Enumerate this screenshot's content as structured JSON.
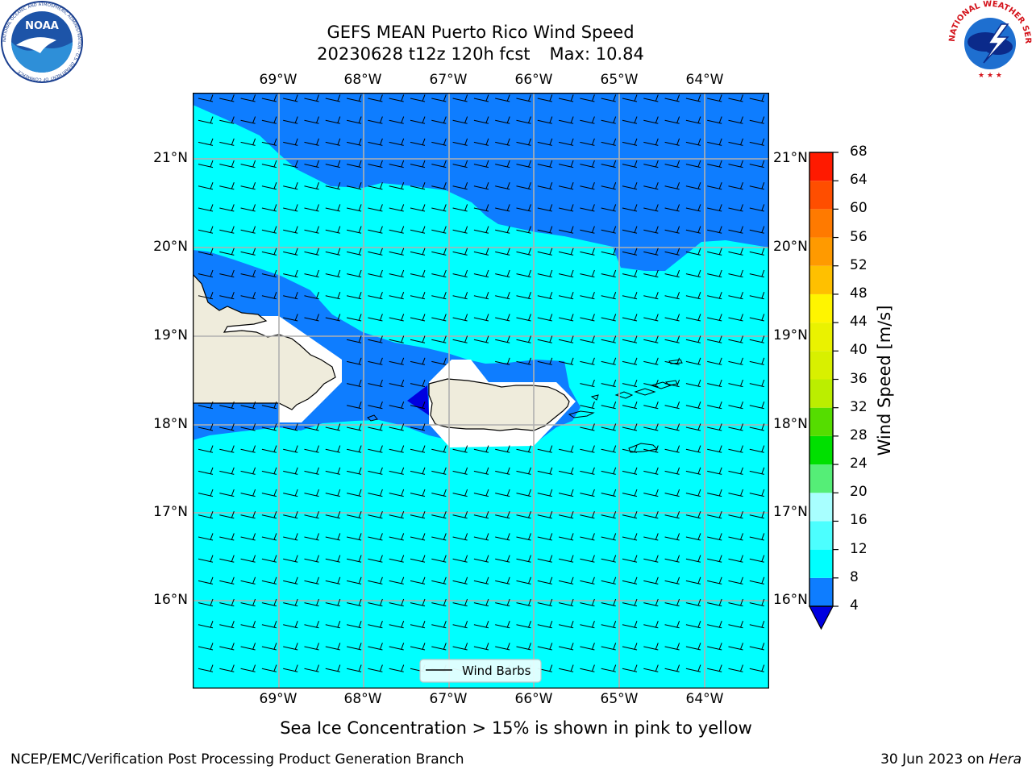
{
  "title": {
    "line1": "GEFS MEAN Puerto Rico Wind Speed",
    "line2_run": "20230628 t12z 120h fcst",
    "line2_max": "Max: 10.84"
  },
  "map": {
    "lon_labels": [
      "69°W",
      "68°W",
      "67°W",
      "66°W",
      "65°W",
      "64°W"
    ],
    "lat_labels": [
      "21°N",
      "20°N",
      "19°N",
      "18°N",
      "17°N",
      "16°N"
    ],
    "legend_label": "Wind Barbs",
    "colors": {
      "band_4_8": "#0e7dff",
      "band_8_12": "#00ffff",
      "below_4": "#0000e0",
      "land": "#efecdc",
      "grid": "#b0b0b0"
    }
  },
  "colorbar": {
    "title": "Wind Speed [m/s]",
    "tick_labels": [
      "68",
      "64",
      "60",
      "56",
      "52",
      "48",
      "44",
      "40",
      "36",
      "32",
      "28",
      "24",
      "20",
      "16",
      "12",
      "8",
      "4"
    ],
    "bands": [
      {
        "from": 4,
        "to": 8,
        "color": "#0e7dff"
      },
      {
        "from": 8,
        "to": 12,
        "color": "#00ffff"
      },
      {
        "from": 12,
        "to": 16,
        "color": "#4cffff"
      },
      {
        "from": 16,
        "to": 20,
        "color": "#a8ffff"
      },
      {
        "from": 20,
        "to": 24,
        "color": "#55ee77"
      },
      {
        "from": 24,
        "to": 28,
        "color": "#00e000"
      },
      {
        "from": 28,
        "to": 32,
        "color": "#55dd00"
      },
      {
        "from": 32,
        "to": 36,
        "color": "#bbee00"
      },
      {
        "from": 36,
        "to": 40,
        "color": "#d8f000"
      },
      {
        "from": 40,
        "to": 44,
        "color": "#eaf200"
      },
      {
        "from": 44,
        "to": 48,
        "color": "#fff500"
      },
      {
        "from": 48,
        "to": 52,
        "color": "#ffc000"
      },
      {
        "from": 52,
        "to": 56,
        "color": "#ff9a00"
      },
      {
        "from": 56,
        "to": 60,
        "color": "#ff7a00"
      },
      {
        "from": 60,
        "to": 64,
        "color": "#ff4e00"
      },
      {
        "from": 64,
        "to": 68,
        "color": "#ff1a00"
      }
    ],
    "below_min_color": "#0000e0"
  },
  "caption": "Sea Ice Concentration > 15% is shown in pink to yellow",
  "footer": {
    "left": "NCEP/EMC/Verification Post Processing Product Generation Branch",
    "right_date": "30 Jun 2023 on ",
    "right_machine": "Hera"
  },
  "logos": {
    "noaa_text": "NOAA",
    "noaa_ring_text": "NATIONAL OCEANIC AND ATMOSPHERIC ADMINISTRATION · U.S. DEPARTMENT OF COMMERCE",
    "nws_ring_text": "NATIONAL WEATHER SERVICE"
  }
}
